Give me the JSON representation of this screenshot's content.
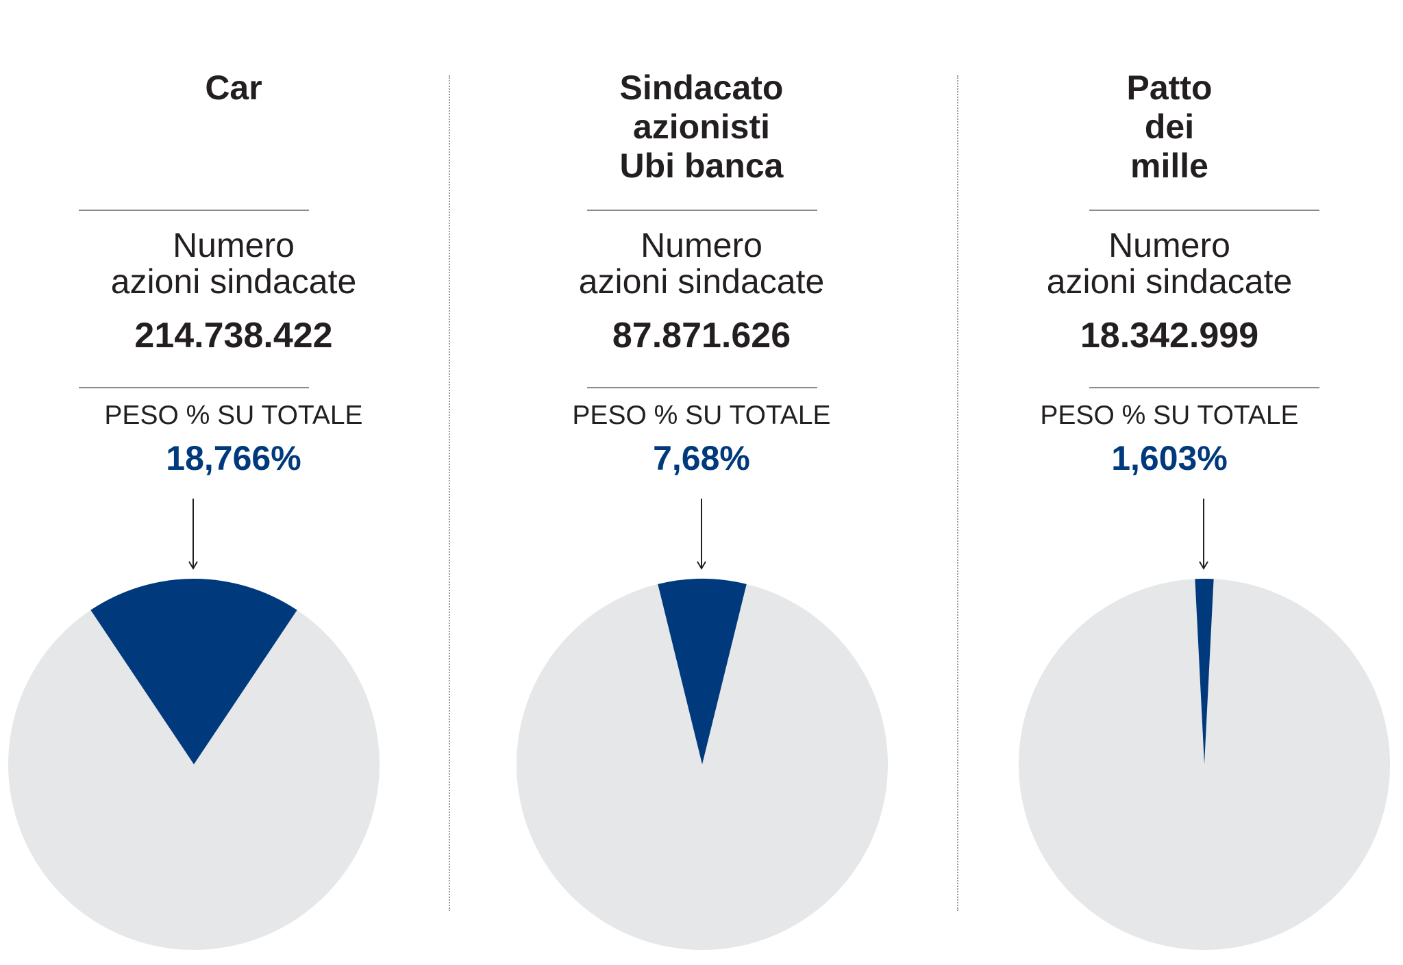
{
  "colors": {
    "accent": "#003a7c",
    "remainder": "#e6e7e9",
    "text": "#231f20"
  },
  "chart_data": [
    {
      "type": "pie",
      "title_lines": [
        "Car"
      ],
      "metric_label_lines": [
        "Numero",
        "azioni sindacate"
      ],
      "metric_value": "214.738.422",
      "share_label": "PESO % SU TOTALE",
      "share_value": "18,766%",
      "slices": [
        {
          "value": 18.766
        },
        {
          "value": 81.234
        }
      ]
    },
    {
      "type": "pie",
      "title_lines": [
        "Sindacato",
        "azionisti",
        "Ubi banca"
      ],
      "metric_label_lines": [
        "Numero",
        "azioni sindacate"
      ],
      "metric_value": "87.871.626",
      "share_label": "PESO % SU TOTALE",
      "share_value": "7,68%",
      "slices": [
        {
          "value": 7.68
        },
        {
          "value": 92.32
        }
      ]
    },
    {
      "type": "pie",
      "title_lines": [
        "Patto",
        "dei",
        "mille"
      ],
      "metric_label_lines": [
        "Numero",
        "azioni sindacate"
      ],
      "metric_value": "18.342.999",
      "share_label": "PESO % SU TOTALE",
      "share_value": "1,603%",
      "slices": [
        {
          "value": 1.603
        },
        {
          "value": 98.397
        }
      ]
    }
  ]
}
